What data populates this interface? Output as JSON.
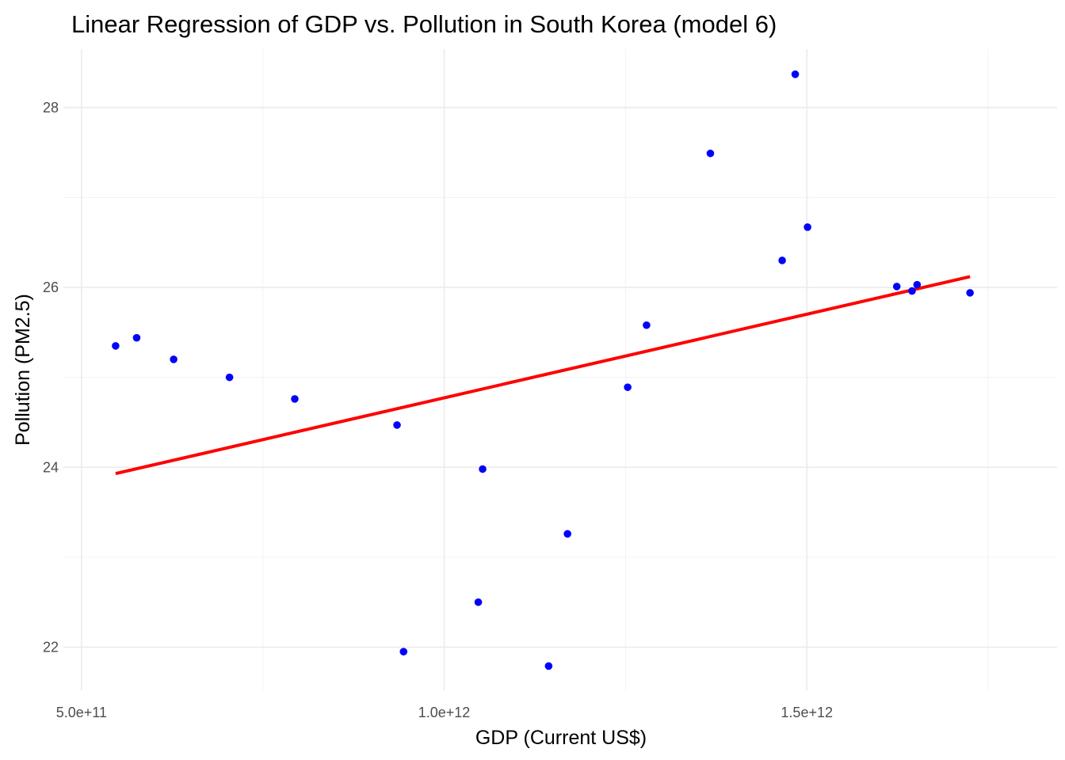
{
  "chart_data": {
    "type": "scatter",
    "title": "Linear Regression of GDP vs. Pollution in South Korea (model 6)",
    "xlabel": "GDP (Current US$)",
    "ylabel": "Pollution (PM2.5)",
    "xlim": [
      475000000000.0,
      1845000000000.0
    ],
    "ylim": [
      21.52,
      28.65
    ],
    "x_ticks": [
      500000000000.0,
      1000000000000.0,
      1500000000000.0
    ],
    "x_tick_labels": [
      "5.0e+11",
      "1.0e+12",
      "1.5e+12"
    ],
    "x_minor_ticks": [
      750000000000.0,
      1250000000000.0,
      1750000000000.0
    ],
    "y_ticks": [
      22,
      24,
      26,
      28
    ],
    "y_tick_labels": [
      "22",
      "24",
      "26",
      "28"
    ],
    "y_minor_ticks": [
      23,
      25,
      27
    ],
    "grid": true,
    "colors": {
      "points": "#0000ff",
      "line": "#ff0000"
    },
    "series": [
      {
        "kind": "points",
        "x": [
          547000000000.0,
          576000000000.0,
          627000000000.0,
          704000000000.0,
          794000000000.0,
          935000000000.0,
          944000000000.0,
          1047000000000.0,
          1053000000000.0,
          1144000000000.0,
          1170000000000.0,
          1253000000000.0,
          1279000000000.0,
          1367000000000.0,
          1466000000000.0,
          1484000000000.0,
          1501000000000.0,
          1624000000000.0,
          1645000000000.0,
          1652000000000.0,
          1725000000000.0
        ],
        "y": [
          25.35,
          25.44,
          25.2,
          25.0,
          24.76,
          24.47,
          21.95,
          22.5,
          23.98,
          21.79,
          23.26,
          24.89,
          25.58,
          27.49,
          26.3,
          28.37,
          26.67,
          26.01,
          25.96,
          26.03,
          25.94
        ]
      },
      {
        "kind": "fit",
        "x": [
          547000000000.0,
          1725000000000.0
        ],
        "y": [
          23.93,
          26.12
        ]
      }
    ]
  }
}
